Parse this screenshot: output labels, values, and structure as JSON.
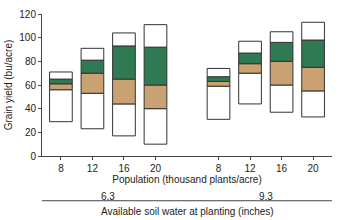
{
  "chart_data": {
    "type": "bar",
    "stacked": true,
    "ylabel": "Grain yield (bu/acre)",
    "xlabel": "Population (thousand plants/acre)",
    "group_title": "Available soil water at planting (inches)",
    "group_labels": [
      "6.3",
      "9.3"
    ],
    "categories": [
      "8",
      "12",
      "16",
      "20",
      null,
      "8",
      "12",
      "16",
      "20"
    ],
    "base": [
      29,
      23,
      17,
      10,
      null,
      31,
      44,
      37,
      33
    ],
    "series": [
      {
        "color": "#ffffff",
        "values": [
          27,
          30,
          27,
          30,
          null,
          28,
          26,
          23,
          22
        ]
      },
      {
        "color": "#c9a173",
        "values": [
          5,
          17,
          21,
          20,
          null,
          4,
          8,
          20,
          20
        ]
      },
      {
        "color": "#2f7a52",
        "values": [
          4,
          11,
          28,
          32,
          null,
          4,
          9,
          16,
          23
        ]
      },
      {
        "color": "#ffffff",
        "values": [
          6,
          10,
          11,
          19,
          null,
          7,
          10,
          9,
          15
        ]
      }
    ],
    "ylim": [
      0,
      120
    ],
    "yticks": [
      0,
      20,
      40,
      60,
      80,
      100,
      120
    ],
    "grid": false
  }
}
